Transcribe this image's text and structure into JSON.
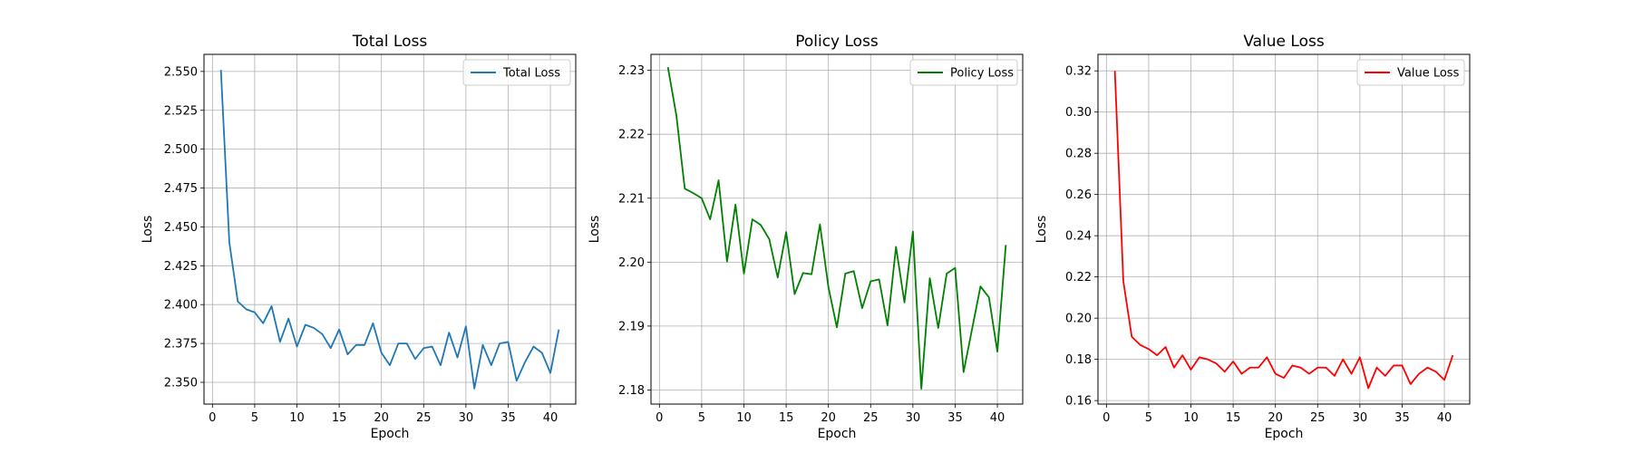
{
  "chart_data": [
    {
      "type": "line",
      "title": "Total Loss",
      "xlabel": "Epoch",
      "ylabel": "Loss",
      "xlim": [
        -1,
        43
      ],
      "ylim": [
        2.336,
        2.561
      ],
      "xticks": [
        0,
        5,
        10,
        15,
        20,
        25,
        30,
        35,
        40
      ],
      "yticks": [
        2.35,
        2.375,
        2.4,
        2.425,
        2.45,
        2.475,
        2.5,
        2.525,
        2.55
      ],
      "ytick_labels": [
        "2.350",
        "2.375",
        "2.400",
        "2.425",
        "2.450",
        "2.475",
        "2.500",
        "2.525",
        "2.550"
      ],
      "grid": true,
      "legend_position": "top-right",
      "x": [
        1,
        2,
        3,
        4,
        5,
        6,
        7,
        8,
        9,
        10,
        11,
        12,
        13,
        14,
        15,
        16,
        17,
        18,
        19,
        20,
        21,
        22,
        23,
        24,
        25,
        26,
        27,
        28,
        29,
        30,
        31,
        32,
        33,
        34,
        35,
        36,
        37,
        38,
        39,
        40,
        41
      ],
      "series": [
        {
          "name": "Total Loss",
          "color": "#1f77b4",
          "values": [
            2.551,
            2.44,
            2.402,
            2.397,
            2.395,
            2.388,
            2.399,
            2.376,
            2.391,
            2.373,
            2.387,
            2.385,
            2.381,
            2.372,
            2.384,
            2.368,
            2.374,
            2.374,
            2.388,
            2.369,
            2.361,
            2.375,
            2.375,
            2.365,
            2.372,
            2.373,
            2.361,
            2.382,
            2.366,
            2.386,
            2.346,
            2.374,
            2.361,
            2.375,
            2.376,
            2.351,
            2.363,
            2.373,
            2.369,
            2.356,
            2.384
          ]
        }
      ]
    },
    {
      "type": "line",
      "title": "Policy Loss",
      "xlabel": "Epoch",
      "ylabel": "Loss",
      "xlim": [
        -1,
        43
      ],
      "ylim": [
        2.1778,
        2.2325
      ],
      "xticks": [
        0,
        5,
        10,
        15,
        20,
        25,
        30,
        35,
        40
      ],
      "yticks": [
        2.18,
        2.19,
        2.2,
        2.21,
        2.22,
        2.23
      ],
      "ytick_labels": [
        "2.18",
        "2.19",
        "2.20",
        "2.21",
        "2.22",
        "2.23"
      ],
      "grid": true,
      "legend_position": "top-right",
      "x": [
        1,
        2,
        3,
        4,
        5,
        6,
        7,
        8,
        9,
        10,
        11,
        12,
        13,
        14,
        15,
        16,
        17,
        18,
        19,
        20,
        21,
        22,
        23,
        24,
        25,
        26,
        27,
        28,
        29,
        30,
        31,
        32,
        33,
        34,
        35,
        36,
        37,
        38,
        39,
        40,
        41
      ],
      "series": [
        {
          "name": "Policy Loss",
          "color": "#008000",
          "values": [
            2.2305,
            2.223,
            2.2115,
            2.2108,
            2.21,
            2.2067,
            2.2128,
            2.2001,
            2.209,
            2.1982,
            2.2067,
            2.2058,
            2.2036,
            2.1976,
            2.2047,
            2.195,
            2.1983,
            2.1981,
            2.2059,
            2.1961,
            2.1898,
            2.1982,
            2.1986,
            2.1928,
            2.197,
            2.1973,
            2.1901,
            2.2024,
            2.1937,
            2.2048,
            2.1802,
            2.1975,
            2.1897,
            2.1982,
            2.1991,
            2.1828,
            2.1895,
            2.1962,
            2.1945,
            2.186,
            2.2027
          ]
        }
      ]
    },
    {
      "type": "line",
      "title": "Value Loss",
      "xlabel": "Epoch",
      "ylabel": "Loss",
      "xlim": [
        -1,
        43
      ],
      "ylim": [
        0.1583,
        0.328
      ],
      "xticks": [
        0,
        5,
        10,
        15,
        20,
        25,
        30,
        35,
        40
      ],
      "yticks": [
        0.16,
        0.18,
        0.2,
        0.22,
        0.24,
        0.26,
        0.28,
        0.3,
        0.32
      ],
      "ytick_labels": [
        "0.16",
        "0.18",
        "0.20",
        "0.22",
        "0.24",
        "0.26",
        "0.28",
        "0.30",
        "0.32"
      ],
      "grid": true,
      "legend_position": "top-right",
      "x": [
        1,
        2,
        3,
        4,
        5,
        6,
        7,
        8,
        9,
        10,
        11,
        12,
        13,
        14,
        15,
        16,
        17,
        18,
        19,
        20,
        21,
        22,
        23,
        24,
        25,
        26,
        27,
        28,
        29,
        30,
        31,
        32,
        33,
        34,
        35,
        36,
        37,
        38,
        39,
        40,
        41
      ],
      "series": [
        {
          "name": "Value Loss",
          "color": "#ff0000",
          "values": [
            0.32,
            0.218,
            0.191,
            0.187,
            0.185,
            0.182,
            0.186,
            0.176,
            0.182,
            0.175,
            0.181,
            0.18,
            0.178,
            0.174,
            0.179,
            0.173,
            0.176,
            0.176,
            0.181,
            0.173,
            0.171,
            0.177,
            0.176,
            0.173,
            0.176,
            0.176,
            0.172,
            0.18,
            0.173,
            0.181,
            0.166,
            0.176,
            0.172,
            0.177,
            0.177,
            0.168,
            0.173,
            0.176,
            0.174,
            0.17,
            0.182
          ]
        }
      ]
    }
  ]
}
